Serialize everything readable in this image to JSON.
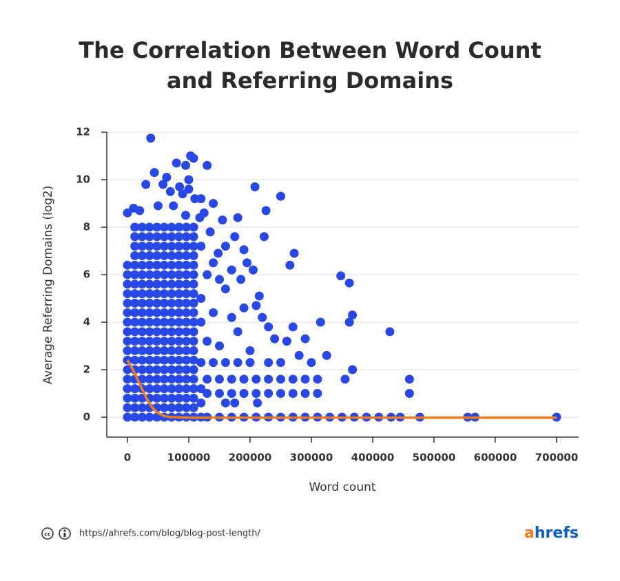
{
  "chart_data": {
    "type": "scatter",
    "title": [
      "The Correlation Between Word Count",
      "and Referring Domains"
    ],
    "x_label": "Word count",
    "y_label": "Average Referring Domains (log2)",
    "color": "#2747e6",
    "xlim": [
      -33700,
      736000
    ],
    "ylim": [
      -0.84,
      12
    ],
    "xticks": [
      0,
      100000,
      200000,
      300000,
      400000,
      500000,
      600000,
      700000
    ],
    "yticks": [
      0,
      2,
      4,
      6,
      8,
      10,
      12
    ],
    "grid": true,
    "x": [
      0,
      0,
      0,
      0,
      0,
      0,
      0,
      0,
      0,
      0,
      0,
      0,
      0,
      0,
      0,
      0,
      0,
      12000,
      12000,
      12000,
      12000,
      12000,
      12000,
      12000,
      12000,
      12000,
      12000,
      12000,
      12000,
      12000,
      12000,
      12000,
      12000,
      12000,
      12000,
      12000,
      12000,
      12000,
      24000,
      24000,
      24000,
      24000,
      24000,
      24000,
      24000,
      24000,
      24000,
      24000,
      24000,
      24000,
      24000,
      24000,
      24000,
      24000,
      24000,
      24000,
      24000,
      24000,
      24000,
      36000,
      36000,
      36000,
      36000,
      36000,
      36000,
      36000,
      36000,
      36000,
      36000,
      36000,
      36000,
      36000,
      36000,
      36000,
      36000,
      36000,
      36000,
      36000,
      36000,
      36000,
      48000,
      48000,
      48000,
      48000,
      48000,
      48000,
      48000,
      48000,
      48000,
      48000,
      48000,
      48000,
      48000,
      48000,
      48000,
      48000,
      48000,
      48000,
      48000,
      48000,
      48000,
      60000,
      60000,
      60000,
      60000,
      60000,
      60000,
      60000,
      60000,
      60000,
      60000,
      60000,
      60000,
      60000,
      60000,
      60000,
      60000,
      60000,
      60000,
      60000,
      60000,
      60000,
      72000,
      72000,
      72000,
      72000,
      72000,
      72000,
      72000,
      72000,
      72000,
      72000,
      72000,
      72000,
      72000,
      72000,
      72000,
      72000,
      72000,
      72000,
      72000,
      72000,
      72000,
      84000,
      84000,
      84000,
      84000,
      84000,
      84000,
      84000,
      84000,
      84000,
      84000,
      84000,
      84000,
      84000,
      84000,
      84000,
      84000,
      84000,
      84000,
      84000,
      84000,
      84000,
      96000,
      96000,
      96000,
      96000,
      96000,
      96000,
      96000,
      96000,
      96000,
      96000,
      96000,
      96000,
      96000,
      96000,
      96000,
      96000,
      96000,
      96000,
      96000,
      96000,
      96000,
      108000,
      108000,
      108000,
      108000,
      108000,
      108000,
      108000,
      108000,
      108000,
      108000,
      108000,
      108000,
      108000,
      108000,
      108000,
      108000,
      108000,
      108000,
      108000,
      108000,
      108000,
      130000,
      150000,
      170000,
      190000,
      210000,
      230000,
      250000,
      270000,
      290000,
      310000,
      330000,
      350000,
      370000,
      390000,
      410000,
      430000,
      445000,
      477000,
      555000,
      567000,
      700000,
      130000,
      150000,
      170000,
      190000,
      210000,
      230000,
      250000,
      270000,
      290000,
      310000,
      130000,
      150000,
      170000,
      190000,
      210000,
      230000,
      250000,
      270000,
      290000,
      310000,
      355000,
      460000,
      460000,
      367000,
      120000,
      140000,
      160000,
      180000,
      200000,
      230000,
      250000,
      300000,
      325000,
      120000,
      130000,
      140000,
      150000,
      160000,
      170000,
      180000,
      190000,
      200000,
      210000,
      220000,
      230000,
      240000,
      260000,
      270000,
      280000,
      290000,
      315000,
      120000,
      130000,
      140000,
      150000,
      170000,
      185000,
      195000,
      205000,
      215000,
      120000,
      135000,
      148000,
      160000,
      125000,
      140000,
      118000,
      110000,
      100000,
      95000,
      103000,
      108000,
      130000,
      38000,
      44000,
      80000,
      30000,
      58000,
      64000,
      70000,
      85000,
      90000,
      100000,
      120000,
      20000,
      50000,
      75000,
      95000,
      0,
      10000,
      208000,
      223000,
      226000,
      250000,
      265000,
      272000,
      175000,
      190000,
      348000,
      362000,
      362000,
      367000,
      428000,
      180000,
      155000,
      120000,
      120000,
      120000,
      160000,
      212000,
      175000
    ],
    "values": [
      0,
      0.4,
      0.8,
      1.2,
      1.6,
      2,
      2.4,
      2.8,
      3.2,
      3.6,
      4,
      4.4,
      4.8,
      5.2,
      5.6,
      6,
      6.4,
      0,
      0.4,
      0.8,
      1.2,
      1.6,
      2,
      2.4,
      2.8,
      3.2,
      3.6,
      4,
      4.4,
      4.8,
      5.2,
      5.6,
      6,
      6.4,
      6.8,
      7.2,
      7.6,
      8,
      0,
      0.4,
      0.8,
      1.2,
      1.6,
      2,
      2.4,
      2.8,
      3.2,
      3.6,
      4,
      4.4,
      4.8,
      5.2,
      5.6,
      6,
      6.4,
      6.8,
      7.2,
      7.6,
      8,
      0,
      0.4,
      0.8,
      1.2,
      1.6,
      2,
      2.4,
      2.8,
      3.2,
      3.6,
      4,
      4.4,
      4.8,
      5.2,
      5.6,
      6,
      6.4,
      6.8,
      7.2,
      7.6,
      8,
      0,
      0.4,
      0.8,
      1.2,
      1.6,
      2,
      2.4,
      2.8,
      3.2,
      3.6,
      4,
      4.4,
      4.8,
      5.2,
      5.6,
      6,
      6.4,
      6.8,
      7.2,
      7.6,
      8,
      0,
      0.4,
      0.8,
      1.2,
      1.6,
      2,
      2.4,
      2.8,
      3.2,
      3.6,
      4,
      4.4,
      4.8,
      5.2,
      5.6,
      6,
      6.4,
      6.8,
      7.2,
      7.6,
      8,
      0,
      0.4,
      0.8,
      1.2,
      1.6,
      2,
      2.4,
      2.8,
      3.2,
      3.6,
      4,
      4.4,
      4.8,
      5.2,
      5.6,
      6,
      6.4,
      6.8,
      7.2,
      7.6,
      8,
      0,
      0.4,
      0.8,
      1.2,
      1.6,
      2,
      2.4,
      2.8,
      3.2,
      3.6,
      4,
      4.4,
      4.8,
      5.2,
      5.6,
      6,
      6.4,
      6.8,
      7.2,
      7.6,
      8,
      0,
      0.4,
      0.8,
      1.2,
      1.6,
      2,
      2.4,
      2.8,
      3.2,
      3.6,
      4,
      4.4,
      4.8,
      5.2,
      5.6,
      6,
      6.4,
      6.8,
      7.2,
      7.6,
      8,
      0,
      0.4,
      0.8,
      1.2,
      1.6,
      2,
      2.4,
      2.8,
      3.2,
      3.6,
      4,
      4.4,
      4.8,
      5.2,
      5.6,
      6,
      6.4,
      6.8,
      7.2,
      7.6,
      8,
      0,
      0,
      0,
      0,
      0,
      0,
      0,
      0,
      0,
      0,
      0,
      0,
      0,
      0,
      0,
      0,
      0,
      0,
      0,
      0,
      0,
      1,
      1,
      1,
      1,
      1,
      1,
      1,
      1,
      1,
      1,
      1.6,
      1.6,
      1.6,
      1.6,
      1.6,
      1.6,
      1.6,
      1.6,
      1.6,
      1.6,
      1.6,
      1.6,
      1,
      2,
      2.3,
      2.3,
      2.3,
      2.3,
      2.3,
      2.3,
      2.3,
      2.3,
      2.6,
      4,
      3.2,
      4.4,
      3,
      5.4,
      4.2,
      3.6,
      4.6,
      2.8,
      4.7,
      4.2,
      3.8,
      3.3,
      3.2,
      3.8,
      2.6,
      3.3,
      4,
      5,
      6,
      6.5,
      5.8,
      6.2,
      5.8,
      6.5,
      6.2,
      5.1,
      7.2,
      7.8,
      6.9,
      7.2,
      8.6,
      9,
      8.4,
      9.2,
      9.6,
      10.6,
      11,
      10.9,
      10.6,
      11.75,
      10.3,
      10.7,
      9.8,
      9.8,
      10.1,
      9.5,
      9.7,
      9.4,
      10,
      9.2,
      8.7,
      8.9,
      8.9,
      8.5,
      8.6,
      8.8,
      9.7,
      7.6,
      8.7,
      9.3,
      6.4,
      6.9,
      7.6,
      7.05,
      5.95,
      5.65,
      4,
      4.3,
      3.6,
      8.4,
      8.3,
      0,
      0.6,
      1.2,
      0.6,
      0.6,
      0.6
    ],
    "trend": {
      "color": "#f07d1a",
      "x": [
        0,
        10000,
        20000,
        30000,
        40000,
        50000,
        60000,
        70000,
        100000,
        200000,
        300000,
        400000,
        500000,
        600000,
        700000
      ],
      "values": [
        2.4,
        1.95,
        1.4,
        0.85,
        0.42,
        0.17,
        0.05,
        0,
        -0.02,
        -0.02,
        -0.02,
        -0.02,
        -0.02,
        -0.02,
        -0.02
      ]
    }
  },
  "footer": {
    "url": "https//ahrefs.com/blog/blog-post-length/",
    "logo_a": "a",
    "logo_rest": "hrefs"
  }
}
